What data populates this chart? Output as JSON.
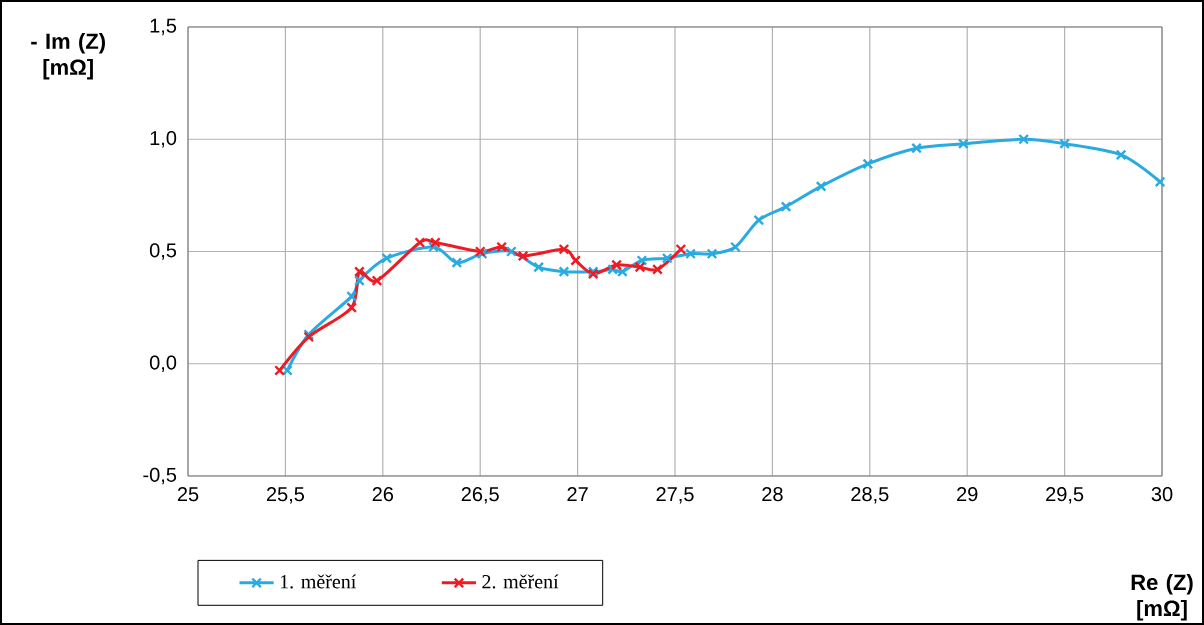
{
  "chart_data": {
    "type": "line",
    "xlabel": "Re (Z) [mΩ]",
    "ylabel": "- Im (Z) [mΩ]",
    "xlim": [
      25,
      30
    ],
    "ylim": [
      -0.5,
      1.5
    ],
    "xticks": [
      25,
      {
        "value": 25.5,
        "label": "25,5"
      },
      26,
      {
        "value": 26.5,
        "label": "26,5"
      },
      27,
      {
        "value": 27.5,
        "label": "27,5"
      },
      28,
      {
        "value": 28.5,
        "label": "28,5"
      },
      29,
      {
        "value": 29.5,
        "label": "29,5"
      },
      30
    ],
    "yticks": [
      {
        "value": -0.5,
        "label": "-0,5"
      },
      {
        "value": 0,
        "label": "0,0"
      },
      {
        "value": 0.5,
        "label": "0,5"
      },
      {
        "value": 1.0,
        "label": "1,0"
      },
      {
        "value": 1.5,
        "label": "1,5"
      }
    ],
    "grid": true,
    "legend": "bottom",
    "marker": "cross",
    "line_style": "solid",
    "series": [
      {
        "name": "1. měření",
        "color": "#29abe2",
        "x": [
          25.51,
          25.62,
          25.84,
          25.88,
          26.02,
          26.26,
          26.38,
          26.51,
          26.66,
          26.8,
          26.93,
          27.08,
          27.18,
          27.23,
          27.33,
          27.46,
          27.58,
          27.69,
          27.81,
          27.93,
          28.07,
          28.25,
          28.49,
          28.74,
          28.98,
          29.29,
          29.5,
          29.79,
          29.99
        ],
        "values": [
          -0.03,
          0.13,
          0.3,
          0.37,
          0.47,
          0.52,
          0.45,
          0.49,
          0.5,
          0.43,
          0.41,
          0.41,
          0.42,
          0.41,
          0.46,
          0.47,
          0.49,
          0.49,
          0.52,
          0.64,
          0.7,
          0.79,
          0.89,
          0.96,
          0.98,
          1.0,
          0.98,
          0.93,
          0.81
        ]
      },
      {
        "name": "2. měření",
        "color": "#ed1c24",
        "x": [
          25.47,
          25.62,
          25.84,
          25.88,
          25.97,
          26.19,
          26.27,
          26.5,
          26.61,
          26.72,
          26.93,
          26.99,
          27.08,
          27.2,
          27.32,
          27.41,
          27.53
        ],
        "values": [
          -0.03,
          0.12,
          0.25,
          0.41,
          0.37,
          0.54,
          0.54,
          0.5,
          0.52,
          0.48,
          0.51,
          0.46,
          0.4,
          0.44,
          0.43,
          0.42,
          0.51
        ]
      }
    ]
  }
}
